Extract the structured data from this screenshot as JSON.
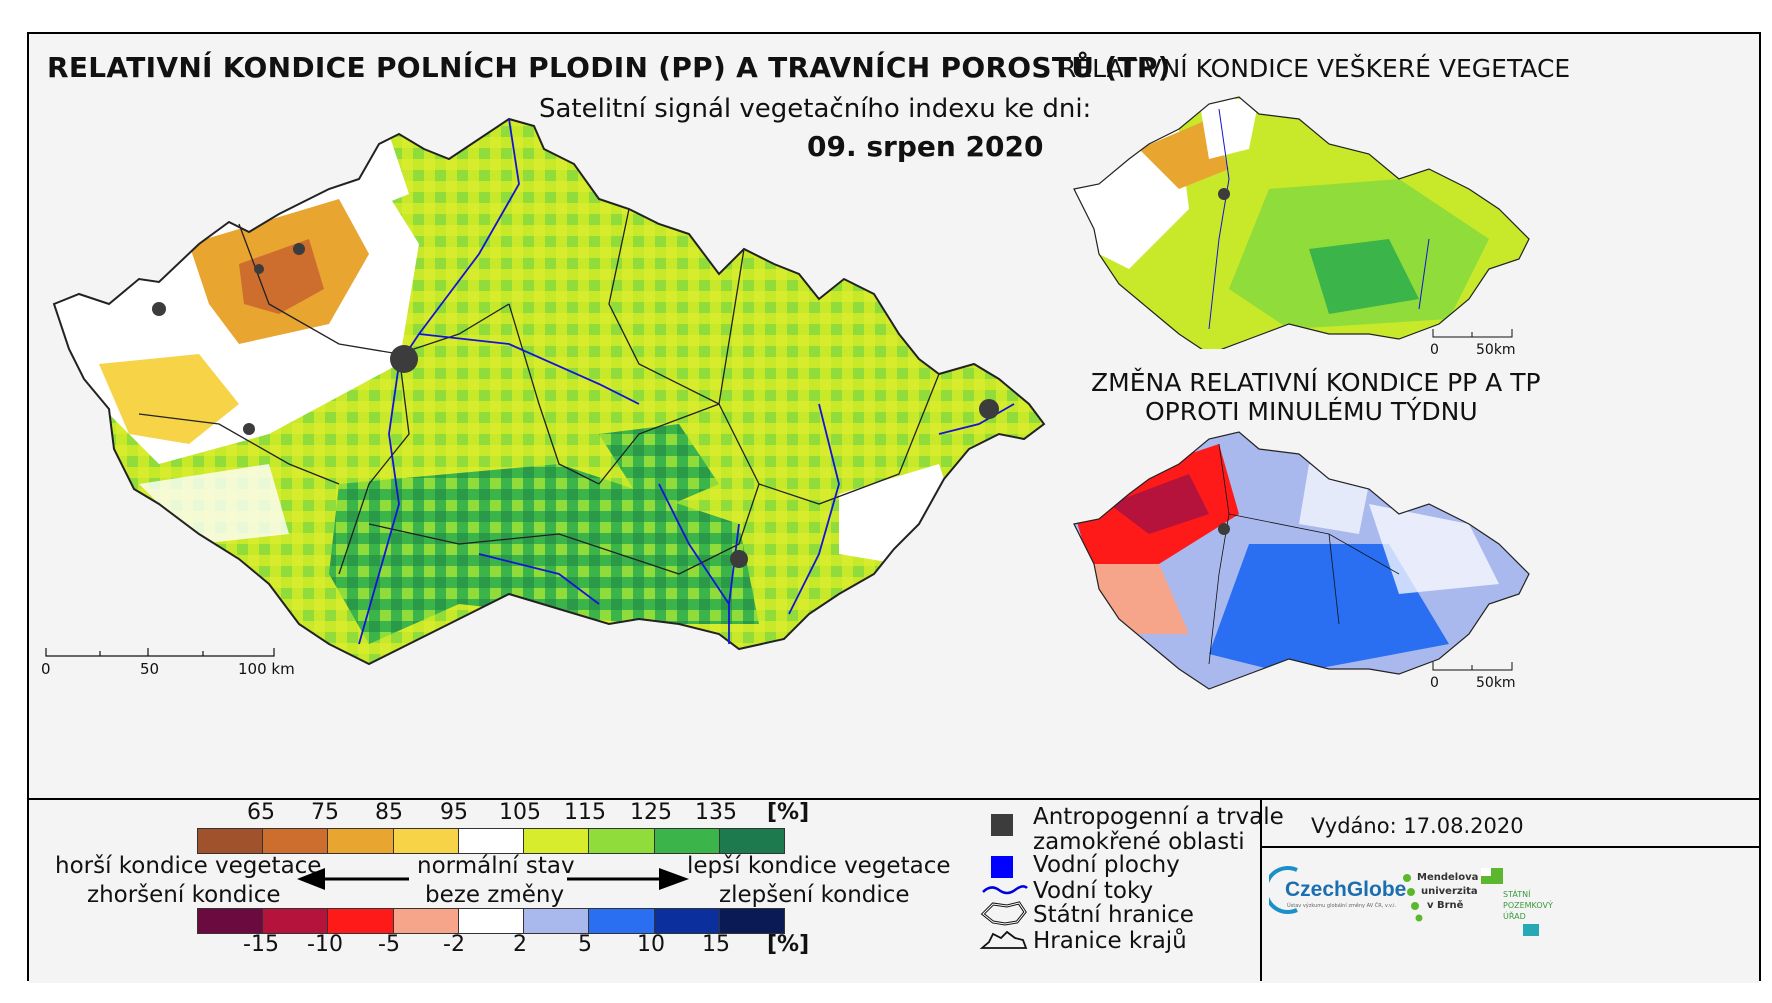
{
  "main_title": "RELATIVNÍ KONDICE POLNÍCH PLODIN (PP) A TRAVNÍCH POROSTŮ (TP)",
  "subtitle": "Satelitní signál vegetačního indexu ke dni:",
  "date": "09. srpen 2020",
  "right_top_title": "RELATIVNÍ KONDICE VEŠKERÉ VEGETACE",
  "right_bottom_title_line1": "ZMĚNA RELATIVNÍ KONDICE PP A TP",
  "right_bottom_title_line2": "OPROTI MINULÉMU TÝDNU",
  "main_scale": {
    "labels": [
      "0",
      "50",
      "100 km"
    ]
  },
  "small_scale": {
    "labels": [
      "0",
      "50km"
    ]
  },
  "condition_legend": {
    "unit": "[%]",
    "ticks": [
      "65",
      "75",
      "85",
      "95",
      "105",
      "115",
      "125",
      "135"
    ],
    "colors": [
      "#a0522d",
      "#cd6e2f",
      "#e8a530",
      "#f7d348",
      "#ffffff",
      "#d6ec2c",
      "#8fdc3a",
      "#3bb54a",
      "#1c7a4e"
    ]
  },
  "change_legend": {
    "unit": "[%]",
    "ticks": [
      "-15",
      "-10",
      "-5",
      "-2",
      "2",
      "5",
      "10",
      "15"
    ],
    "colors": [
      "#6b0a3f",
      "#b5123c",
      "#ff1a1a",
      "#f7a58a",
      "#ffffff",
      "#a9b9ee",
      "#2a6ef2",
      "#0c2f9e",
      "#0a1a55"
    ]
  },
  "arrows": {
    "left_line1": "horší kondice vegetace",
    "left_line2": "zhoršení kondice",
    "center_line1": "normální stav",
    "center_line2": "beze změny",
    "right_line1": "lepší kondice vegetace",
    "right_line2": "zlepšení kondice"
  },
  "symbol_legend": [
    {
      "label": "Antropogenní a trvale",
      "label2": "zamokřené oblasti",
      "icon": "anthropogenic-square",
      "color": "#3c3c3c"
    },
    {
      "label": "Vodní plochy",
      "icon": "water-square",
      "color": "#0000ff"
    },
    {
      "label": "Vodní toky",
      "icon": "river-line",
      "color": "#0000dd"
    },
    {
      "label": "Státní hranice",
      "icon": "state-border-outline"
    },
    {
      "label": "Hranice krajů",
      "icon": "region-border-outline"
    }
  ],
  "issued": "Vydáno: 17.08.2020",
  "logos": {
    "czechglobe": "CzechGlobe",
    "czechglobe_sub": "Ústav výzkumu globální změny AV ČR, v.v.i.",
    "mendel": "Mendelova",
    "mendel2": "univerzita",
    "mendel3": "v Brně",
    "spu1": "STÁTNÍ",
    "spu2": "POZEMKOVÝ",
    "spu3": "ÚŘAD"
  }
}
